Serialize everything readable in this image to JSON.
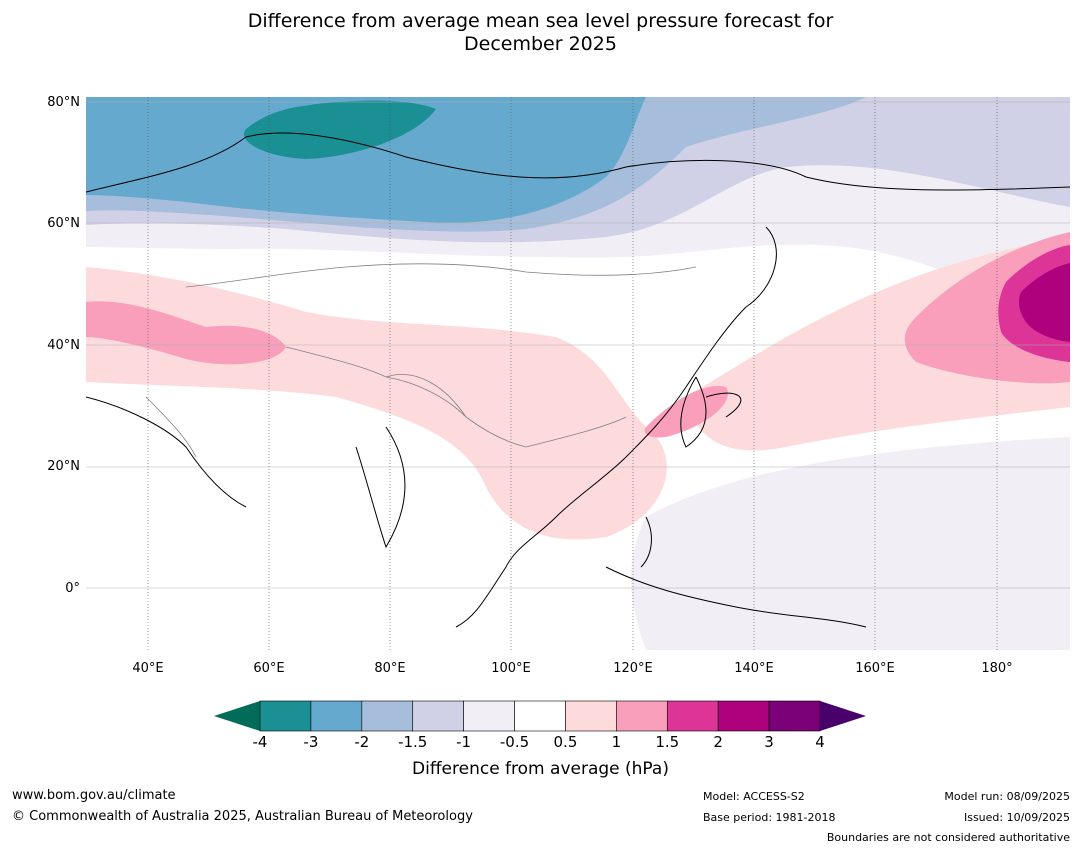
{
  "title_line1": "Difference from average mean sea level pressure forecast for",
  "title_line2": "December 2025",
  "lat_labels": [
    "80°N",
    "60°N",
    "40°N",
    "20°N",
    "0°"
  ],
  "lon_labels": [
    "40°E",
    "60°E",
    "80°E",
    "100°E",
    "120°E",
    "140°E",
    "160°E",
    "180°"
  ],
  "colorbar": {
    "ticks": [
      "-4",
      "-3",
      "-2",
      "-1.5",
      "-1",
      "-0.5",
      "0.5",
      "1",
      "1.5",
      "2",
      "3",
      "4"
    ],
    "colors": [
      "#1a8f94",
      "#66a9cf",
      "#a6bddb",
      "#d0d1e6",
      "#f1eef6",
      "#ffffff",
      "#fddbdd",
      "#f99fbb",
      "#dd3497",
      "#ae017e",
      "#7a0177"
    ],
    "under_color": "#016c59",
    "over_color": "#49006a",
    "label": "Difference from average (hPa)"
  },
  "footer": {
    "website": "www.bom.gov.au/climate",
    "copyright": "© Commonwealth of Australia 2025, Australian Bureau of Meteorology",
    "model": "Model: ACCESS-S2",
    "base_period": "Base period: 1981-2018",
    "model_run": "Model run: 08/09/2025",
    "issued": "Issued: 10/09/2025",
    "boundaries": "Boundaries are not considered authoritative"
  }
}
